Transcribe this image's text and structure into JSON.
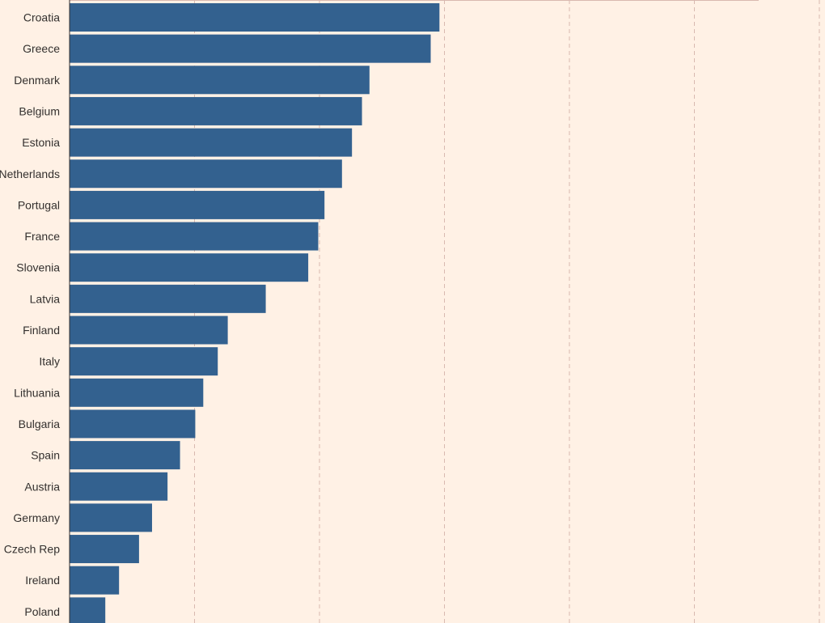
{
  "colors": {
    "background": "#fff1e5",
    "bar": "#33618f",
    "grid": "#d9b9b0",
    "label": "#33302e",
    "axis": "#33302e"
  },
  "chart_data": {
    "type": "bar",
    "orientation": "horizontal",
    "categories": [
      "Croatia",
      "Greece",
      "Denmark",
      "Belgium",
      "Estonia",
      "Netherlands",
      "Portugal",
      "France",
      "Slovenia",
      "Latvia",
      "Finland",
      "Italy",
      "Lithuania",
      "Bulgaria",
      "Spain",
      "Austria",
      "Germany",
      "Czech Rep",
      "Ireland",
      "Poland"
    ],
    "values": [
      14.8,
      14.45,
      12.0,
      11.7,
      11.3,
      10.9,
      10.2,
      9.95,
      9.55,
      7.85,
      6.33,
      5.93,
      5.35,
      5.03,
      4.42,
      3.92,
      3.3,
      2.78,
      1.98,
      1.43
    ],
    "xlim": [
      0,
      30
    ],
    "grid": true,
    "grid_style": "dashed",
    "title": "",
    "xlabel": "",
    "ylabel": ""
  }
}
